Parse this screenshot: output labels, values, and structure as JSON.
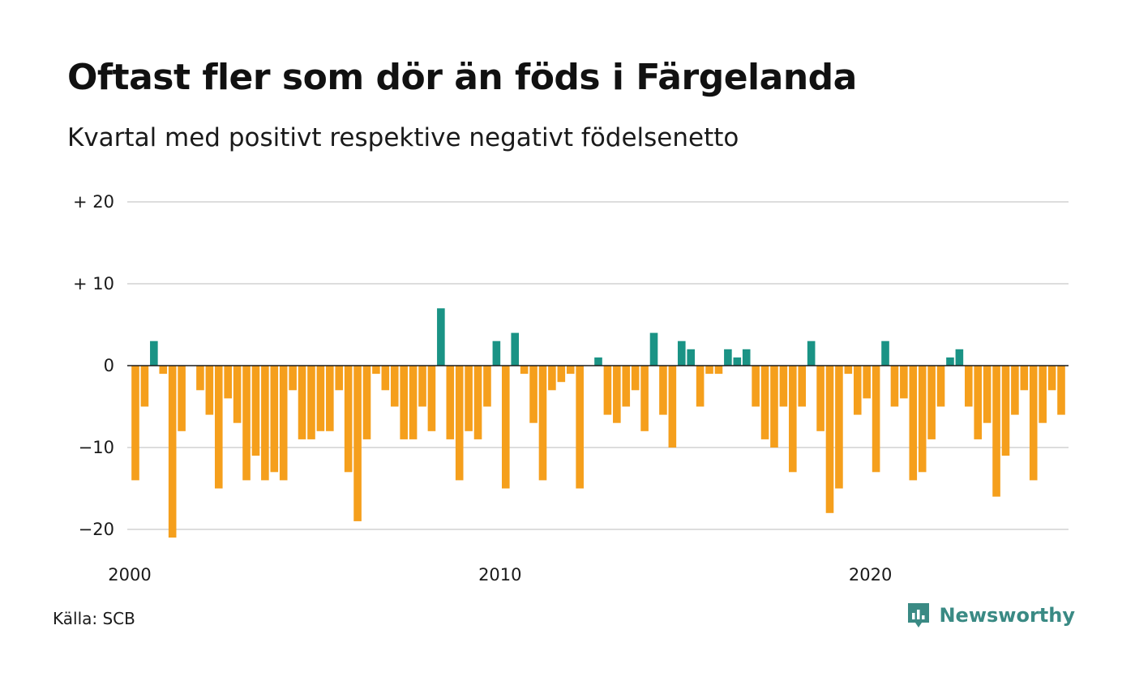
{
  "title": "Oftast fler som dör än föds i Färgelanda",
  "subtitle": "Kvartal med positivt respektive negativt födelsenetto",
  "source": "Källa: SCB",
  "brand": {
    "name": "Newsworthy",
    "logo_icon": "newsworthy-chart-bubble-icon"
  },
  "colors": {
    "positive": "#1a9385",
    "negative": "#f59f1c",
    "grid": "#dddddd",
    "zero_line": "#1a1a1a"
  },
  "chart_data": {
    "type": "bar",
    "title": "Oftast fler som dör än föds i Färgelanda",
    "subtitle": "Kvartal med positivt respektive negativt födelsenetto",
    "xlabel": "",
    "ylabel": "",
    "ylim": [
      -23,
      20
    ],
    "y_ticks": [
      {
        "value": 20,
        "label": "+ 20"
      },
      {
        "value": 10,
        "label": "+ 10"
      },
      {
        "value": 0,
        "label": "0"
      },
      {
        "value": -10,
        "label": "−10"
      },
      {
        "value": -20,
        "label": "−20"
      }
    ],
    "x_ticks": [
      {
        "index": 0,
        "label": "2000"
      },
      {
        "index": 40,
        "label": "2010"
      },
      {
        "index": 80,
        "label": "2020"
      }
    ],
    "grid": true,
    "start_period": "2000 Q1",
    "values": [
      -14,
      -5,
      3,
      -1,
      -21,
      -8,
      0,
      -3,
      -6,
      -15,
      -4,
      -7,
      -14,
      -11,
      -14,
      -13,
      -14,
      -3,
      -9,
      -9,
      -8,
      -8,
      -3,
      -13,
      -19,
      -9,
      -1,
      -3,
      -5,
      -9,
      -9,
      -5,
      -8,
      7,
      -9,
      -14,
      -8,
      -9,
      -5,
      3,
      -15,
      4,
      -1,
      -7,
      -14,
      -3,
      -2,
      -1,
      -15,
      0,
      1,
      -6,
      -7,
      -5,
      -3,
      -8,
      4,
      -6,
      -10,
      3,
      2,
      -5,
      -1,
      -1,
      2,
      1,
      2,
      -5,
      -9,
      -10,
      -5,
      -13,
      -5,
      3,
      -8,
      -18,
      -15,
      -1,
      -6,
      -4,
      -13,
      3,
      -5,
      -4,
      -14,
      -13,
      -9,
      -5,
      1,
      2,
      -5,
      -9,
      -7,
      -16,
      -11,
      -6,
      -3,
      -14,
      -7,
      -3,
      -6
    ]
  }
}
